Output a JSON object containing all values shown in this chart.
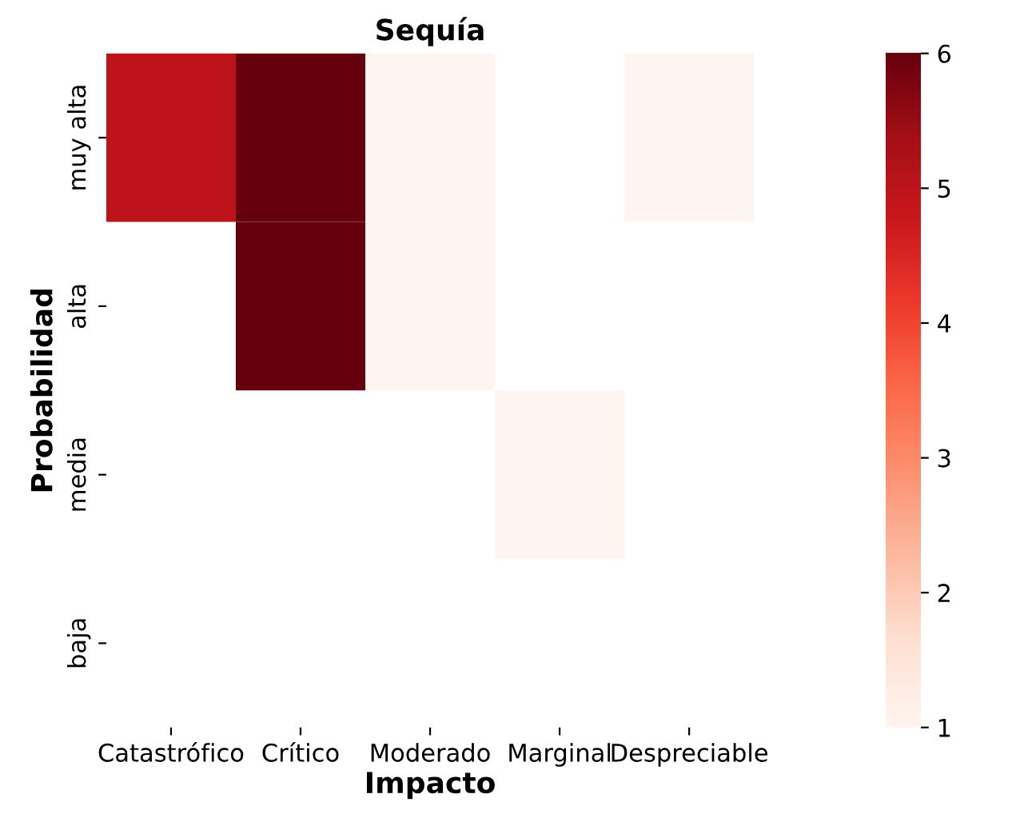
{
  "chart_data": {
    "type": "heatmap",
    "title": "Sequía",
    "xlabel": "Impacto",
    "ylabel": "Probabilidad",
    "categories": [
      "Catastrófico",
      "Crítico",
      "Moderado",
      "Marginal",
      "Despreciable"
    ],
    "y_categories": [
      "muy alta",
      "alta",
      "media",
      "baja"
    ],
    "cells": [
      [
        5,
        6,
        1,
        null,
        1
      ],
      [
        null,
        6,
        1,
        null,
        null
      ],
      [
        null,
        null,
        null,
        1,
        null
      ],
      [
        null,
        null,
        null,
        null,
        null
      ]
    ],
    "clim": [
      1,
      6
    ],
    "cticks": [
      1,
      2,
      3,
      4,
      5,
      6
    ]
  }
}
